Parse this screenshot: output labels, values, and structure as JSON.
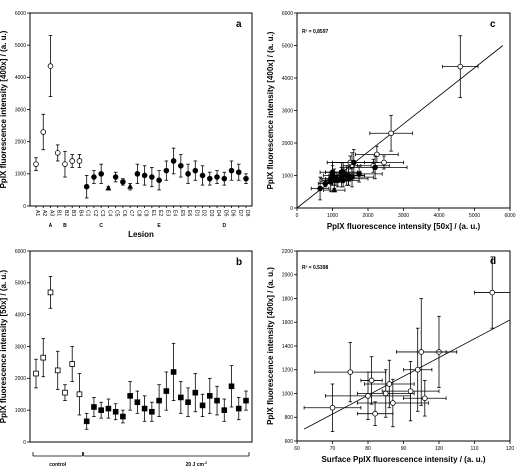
{
  "chart_data": [
    {
      "id": "a",
      "type": "scatter",
      "panel_letter": "a",
      "ylabel": "PpIX fluorescence intensity [400x] / (a. u.)",
      "xlabel": "Lesion",
      "ylim": [
        0,
        6000
      ],
      "yticks": [
        0,
        1000,
        2000,
        3000,
        4000,
        5000,
        6000
      ],
      "tick_labels": [
        "A1",
        "A2",
        "A3",
        "B1",
        "B2",
        "B3",
        "B4",
        "C1",
        "C2",
        "C3",
        "C4",
        "C5",
        "C6",
        "C7",
        "C8",
        "C9",
        "E1",
        "E2",
        "E3",
        "E4",
        "E5",
        "E6",
        "D1",
        "D2",
        "D3",
        "D4",
        "D5",
        "D6",
        "D7",
        "D8"
      ],
      "group_labels": [
        {
          "label": "A",
          "at": 2
        },
        {
          "label": "B",
          "at": 4
        },
        {
          "label": "C",
          "at": 9
        },
        {
          "label": "E",
          "at": 17
        },
        {
          "label": "D",
          "at": 26
        }
      ],
      "points": [
        {
          "y": 1300,
          "err": 200,
          "marker": "open-circle"
        },
        {
          "y": 2300,
          "err": 550,
          "marker": "open-circle"
        },
        {
          "y": 4350,
          "err": 950,
          "marker": "open-circle"
        },
        {
          "y": 1650,
          "err": 250,
          "marker": "open-circle"
        },
        {
          "y": 1300,
          "err": 400,
          "marker": "open-circle"
        },
        {
          "y": 1400,
          "err": 200,
          "marker": "open-circle"
        },
        {
          "y": 1400,
          "err": 200,
          "marker": "open-circle"
        },
        {
          "y": 600,
          "err": 350,
          "marker": "filled-circle"
        },
        {
          "y": 900,
          "err": 200,
          "marker": "filled-circle"
        },
        {
          "y": 1000,
          "err": 300,
          "marker": "filled-circle"
        },
        {
          "y": 550,
          "err": 50,
          "marker": "filled-triangle"
        },
        {
          "y": 900,
          "err": 150,
          "marker": "filled-circle"
        },
        {
          "y": 750,
          "err": 100,
          "marker": "filled-circle"
        },
        {
          "y": 600,
          "err": 100,
          "marker": "filled-triangle"
        },
        {
          "y": 1000,
          "err": 300,
          "marker": "filled-circle"
        },
        {
          "y": 950,
          "err": 300,
          "marker": "filled-circle"
        },
        {
          "y": 900,
          "err": 300,
          "marker": "filled-circle"
        },
        {
          "y": 800,
          "err": 300,
          "marker": "filled-circle"
        },
        {
          "y": 1100,
          "err": 300,
          "marker": "filled-circle"
        },
        {
          "y": 1400,
          "err": 400,
          "marker": "filled-circle"
        },
        {
          "y": 1250,
          "err": 350,
          "marker": "filled-circle"
        },
        {
          "y": 1000,
          "err": 300,
          "marker": "filled-circle"
        },
        {
          "y": 1100,
          "err": 300,
          "marker": "filled-circle"
        },
        {
          "y": 950,
          "err": 300,
          "marker": "filled-circle"
        },
        {
          "y": 850,
          "err": 200,
          "marker": "filled-circle"
        },
        {
          "y": 900,
          "err": 200,
          "marker": "filled-circle"
        },
        {
          "y": 850,
          "err": 200,
          "marker": "filled-circle"
        },
        {
          "y": 1100,
          "err": 300,
          "marker": "filled-circle"
        },
        {
          "y": 1050,
          "err": 250,
          "marker": "filled-circle"
        },
        {
          "y": 850,
          "err": 150,
          "marker": "filled-circle"
        }
      ]
    },
    {
      "id": "b",
      "type": "scatter",
      "panel_letter": "b",
      "ylabel": "PpIX fluorescence intensity [50x] / (a. u.)",
      "ylim": [
        0,
        6000
      ],
      "yticks": [
        0,
        1000,
        2000,
        3000,
        4000,
        5000,
        6000
      ],
      "group_labels": [
        {
          "label": "control",
          "from": 0,
          "to": 6
        },
        {
          "label": "20 J cm",
          "sup": "-2",
          "from": 7,
          "to": 29
        }
      ],
      "points": [
        {
          "y": 2150,
          "err": 450,
          "marker": "open-square"
        },
        {
          "y": 2650,
          "err": 600,
          "marker": "open-square"
        },
        {
          "y": 4700,
          "err": 500,
          "marker": "open-square"
        },
        {
          "y": 2250,
          "err": 600,
          "marker": "open-square"
        },
        {
          "y": 1550,
          "err": 250,
          "marker": "open-square"
        },
        {
          "y": 2450,
          "err": 550,
          "marker": "open-square"
        },
        {
          "y": 1500,
          "err": 650,
          "marker": "open-square"
        },
        {
          "y": 650,
          "err": 250,
          "marker": "filled-square"
        },
        {
          "y": 1100,
          "err": 300,
          "marker": "filled-square"
        },
        {
          "y": 1000,
          "err": 250,
          "marker": "filled-square"
        },
        {
          "y": 1050,
          "err": 300,
          "marker": "filled-square"
        },
        {
          "y": 950,
          "err": 250,
          "marker": "filled-square"
        },
        {
          "y": 800,
          "err": 200,
          "marker": "filled-square"
        },
        {
          "y": 1450,
          "err": 450,
          "marker": "filled-square"
        },
        {
          "y": 1250,
          "err": 350,
          "marker": "filled-square"
        },
        {
          "y": 1050,
          "err": 400,
          "marker": "filled-square"
        },
        {
          "y": 950,
          "err": 300,
          "marker": "filled-square"
        },
        {
          "y": 1300,
          "err": 500,
          "marker": "filled-square"
        },
        {
          "y": 1600,
          "err": 600,
          "marker": "filled-square"
        },
        {
          "y": 2200,
          "err": 900,
          "marker": "filled-square"
        },
        {
          "y": 1400,
          "err": 500,
          "marker": "filled-square"
        },
        {
          "y": 1250,
          "err": 450,
          "marker": "filled-square"
        },
        {
          "y": 1550,
          "err": 600,
          "marker": "filled-square"
        },
        {
          "y": 1150,
          "err": 350,
          "marker": "filled-square"
        },
        {
          "y": 1450,
          "err": 550,
          "marker": "filled-square"
        },
        {
          "y": 1300,
          "err": 450,
          "marker": "filled-square"
        },
        {
          "y": 1000,
          "err": 350,
          "marker": "filled-square"
        },
        {
          "y": 1750,
          "err": 650,
          "marker": "filled-square"
        },
        {
          "y": 1050,
          "err": 350,
          "marker": "filled-square"
        },
        {
          "y": 1300,
          "err": 300,
          "marker": "filled-square"
        }
      ]
    },
    {
      "id": "c",
      "type": "scatter",
      "panel_letter": "c",
      "xlabel": "PpIX fluorescence intensity [50x] / (a. u.)",
      "ylabel": "PpIX fluorescence intensity [400x] / (a. u.)",
      "xlim": [
        0,
        6000
      ],
      "ylim": [
        0,
        6000
      ],
      "xticks": [
        0,
        1000,
        2000,
        3000,
        4000,
        5000,
        6000
      ],
      "yticks": [
        0,
        1000,
        2000,
        3000,
        4000,
        5000,
        6000
      ],
      "annotation": "R² = 0,8597",
      "fit_line": [
        [
          0,
          0
        ],
        [
          5800,
          5000
        ]
      ],
      "points": [
        {
          "x": 4600,
          "y": 4350,
          "xerr": 500,
          "yerr": 950,
          "marker": "open-circle"
        },
        {
          "x": 2650,
          "y": 2300,
          "xerr": 600,
          "yerr": 550,
          "marker": "open-circle"
        },
        {
          "x": 2450,
          "y": 1400,
          "xerr": 550,
          "yerr": 200,
          "marker": "open-circle"
        },
        {
          "x": 2250,
          "y": 1650,
          "xerr": 600,
          "yerr": 250,
          "marker": "open-circle"
        },
        {
          "x": 2150,
          "y": 1300,
          "xerr": 450,
          "yerr": 200,
          "marker": "open-circle"
        },
        {
          "x": 1550,
          "y": 1300,
          "xerr": 250,
          "yerr": 400,
          "marker": "open-circle"
        },
        {
          "x": 1500,
          "y": 1400,
          "xerr": 650,
          "yerr": 200,
          "marker": "open-circle"
        },
        {
          "x": 650,
          "y": 600,
          "xerr": 250,
          "yerr": 350,
          "marker": "filled-circle"
        },
        {
          "x": 1100,
          "y": 900,
          "xerr": 300,
          "yerr": 200,
          "marker": "filled-circle"
        },
        {
          "x": 1000,
          "y": 1000,
          "xerr": 250,
          "yerr": 300,
          "marker": "filled-circle"
        },
        {
          "x": 1050,
          "y": 550,
          "xerr": 300,
          "yerr": 50,
          "marker": "filled-triangle"
        },
        {
          "x": 950,
          "y": 900,
          "xerr": 250,
          "yerr": 150,
          "marker": "filled-circle"
        },
        {
          "x": 800,
          "y": 750,
          "xerr": 200,
          "yerr": 100,
          "marker": "filled-circle"
        },
        {
          "x": 1450,
          "y": 1000,
          "xerr": 450,
          "yerr": 300,
          "marker": "filled-circle"
        },
        {
          "x": 1250,
          "y": 950,
          "xerr": 350,
          "yerr": 300,
          "marker": "filled-circle"
        },
        {
          "x": 1050,
          "y": 900,
          "xerr": 400,
          "yerr": 300,
          "marker": "filled-circle"
        },
        {
          "x": 950,
          "y": 800,
          "xerr": 300,
          "yerr": 300,
          "marker": "filled-circle"
        },
        {
          "x": 1300,
          "y": 1100,
          "xerr": 500,
          "yerr": 300,
          "marker": "filled-circle"
        },
        {
          "x": 1600,
          "y": 1400,
          "xerr": 600,
          "yerr": 400,
          "marker": "filled-circle"
        },
        {
          "x": 2200,
          "y": 1250,
          "xerr": 900,
          "yerr": 350,
          "marker": "filled-circle"
        },
        {
          "x": 1400,
          "y": 1000,
          "xerr": 500,
          "yerr": 300,
          "marker": "filled-circle"
        },
        {
          "x": 1250,
          "y": 1100,
          "xerr": 450,
          "yerr": 300,
          "marker": "filled-circle"
        },
        {
          "x": 1550,
          "y": 950,
          "xerr": 600,
          "yerr": 300,
          "marker": "filled-circle"
        },
        {
          "x": 1150,
          "y": 850,
          "xerr": 350,
          "yerr": 200,
          "marker": "filled-circle"
        },
        {
          "x": 1450,
          "y": 900,
          "xerr": 550,
          "yerr": 200,
          "marker": "filled-circle"
        },
        {
          "x": 1300,
          "y": 850,
          "xerr": 450,
          "yerr": 200,
          "marker": "filled-circle"
        },
        {
          "x": 1000,
          "y": 1100,
          "xerr": 350,
          "yerr": 300,
          "marker": "filled-circle"
        },
        {
          "x": 1750,
          "y": 1050,
          "xerr": 650,
          "yerr": 250,
          "marker": "filled-circle"
        },
        {
          "x": 1050,
          "y": 850,
          "xerr": 350,
          "yerr": 150,
          "marker": "filled-circle"
        },
        {
          "x": 1300,
          "y": 1000,
          "xerr": 300,
          "yerr": 200,
          "marker": "filled-circle"
        }
      ]
    },
    {
      "id": "d",
      "type": "scatter",
      "panel_letter": "d",
      "xlabel": "Surface PpIX fluorescence intensity / (a. u.)",
      "ylabel": "PpIX fluorescence intensity [400x] / (a. u.)",
      "xlim": [
        60,
        120
      ],
      "ylim": [
        600,
        2200
      ],
      "xticks": [
        60,
        70,
        80,
        90,
        100,
        110,
        120
      ],
      "yticks": [
        600,
        800,
        1000,
        1200,
        1400,
        1600,
        1800,
        2000,
        2200
      ],
      "annotation": "R² = 0.5398",
      "fit_line": [
        [
          62,
          700
        ],
        [
          120,
          1620
        ]
      ],
      "points": [
        {
          "x": 115,
          "y": 1850,
          "xerr": 5,
          "yerr": 300,
          "marker": "open-circle"
        },
        {
          "x": 100,
          "y": 1350,
          "xerr": 5,
          "yerr": 300,
          "marker": "open-circle"
        },
        {
          "x": 95,
          "y": 1350,
          "xerr": 7,
          "yerr": 450,
          "marker": "open-circle"
        },
        {
          "x": 94,
          "y": 1200,
          "xerr": 4,
          "yerr": 350,
          "marker": "open-circle"
        },
        {
          "x": 92,
          "y": 1020,
          "xerr": 8,
          "yerr": 250,
          "marker": "open-circle"
        },
        {
          "x": 75,
          "y": 1180,
          "xerr": 10,
          "yerr": 250,
          "marker": "open-circle"
        },
        {
          "x": 81,
          "y": 1110,
          "xerr": 3,
          "yerr": 200,
          "marker": "open-circle"
        },
        {
          "x": 70,
          "y": 880,
          "xerr": 8,
          "yerr": 200,
          "marker": "open-circle"
        },
        {
          "x": 85,
          "y": 1000,
          "xerr": 8,
          "yerr": 200,
          "marker": "open-circle"
        },
        {
          "x": 87,
          "y": 920,
          "xerr": 10,
          "yerr": 200,
          "marker": "open-circle"
        },
        {
          "x": 82,
          "y": 830,
          "xerr": 5,
          "yerr": 100,
          "marker": "open-circle"
        },
        {
          "x": 80,
          "y": 980,
          "xerr": 12,
          "yerr": 200,
          "marker": "open-circle"
        },
        {
          "x": 86,
          "y": 1080,
          "xerr": 7,
          "yerr": 200,
          "marker": "open-circle"
        },
        {
          "x": 96,
          "y": 960,
          "xerr": 6,
          "yerr": 150,
          "marker": "open-circle"
        }
      ]
    }
  ]
}
